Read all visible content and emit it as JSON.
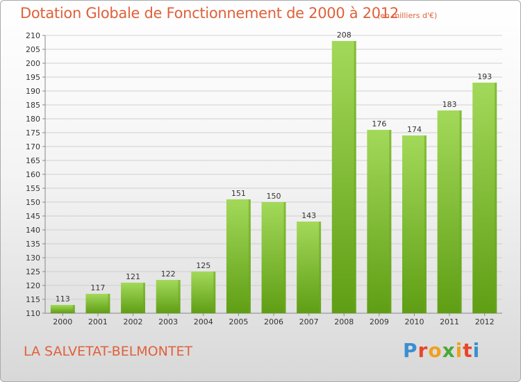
{
  "header": {
    "title": "Dotation Globale de Fonctionnement de 2000 à 2012",
    "unit": "(en milliers d'€)"
  },
  "footer": {
    "commune": "LA SALVETAT-BELMONTET",
    "brand": "Proxiti"
  },
  "colors": {
    "accent": "#e0603a",
    "bar_light": "#9bd352",
    "bar_dark": "#5f9e14",
    "grid": "#cfcfcf"
  },
  "chart_data": {
    "type": "bar",
    "title": "Dotation Globale de Fonctionnement de 2000 à 2012",
    "subtitle": "(en milliers d'€)",
    "xlabel": "",
    "ylabel": "",
    "categories": [
      "2000",
      "2001",
      "2002",
      "2003",
      "2004",
      "2005",
      "2006",
      "2007",
      "2008",
      "2009",
      "2010",
      "2011",
      "2012"
    ],
    "values": [
      113,
      117,
      121,
      122,
      125,
      151,
      150,
      143,
      208,
      176,
      174,
      183,
      193
    ],
    "ylim": [
      110,
      210
    ],
    "ytick_step": 5,
    "grid": true,
    "legend": "none"
  }
}
